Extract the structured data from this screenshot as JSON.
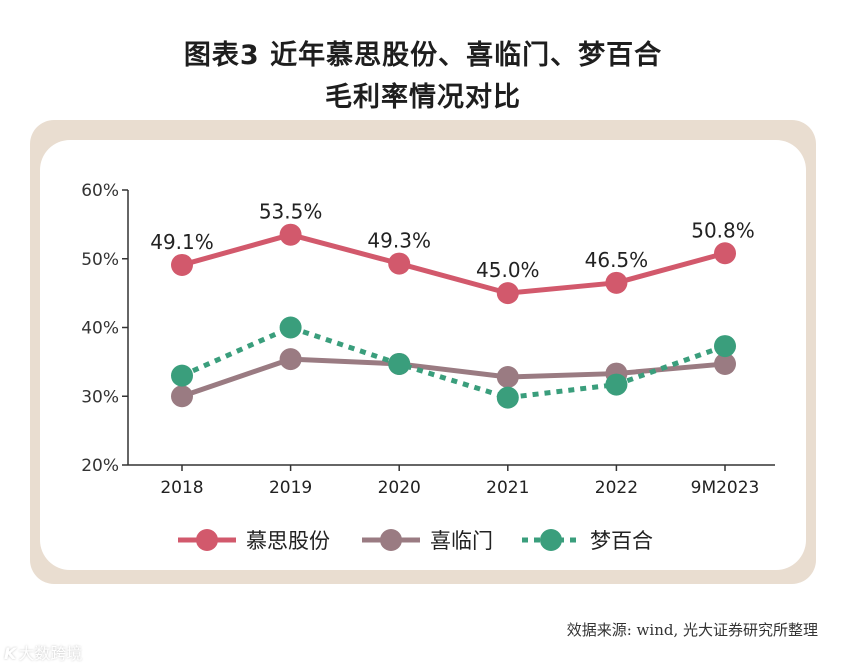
{
  "title_line1": "图表3  近年慕思股份、喜临门、梦百合",
  "title_line2": "毛利率情况对比",
  "source": "效据来源: wind, 光大证券研究所整理",
  "watermark": {
    "logo": "K",
    "text": "大数跨境"
  },
  "colors": {
    "慕思股份": "#d2596c",
    "喜临门": "#9a7b82",
    "梦百合": "#3a9e7c",
    "frame": "#e9ddd0",
    "axis": "#333333"
  },
  "chart_data": {
    "type": "line",
    "title": "图表3  近年慕思股份、喜临门、梦百合 毛利率情况对比",
    "categories": [
      "2018",
      "2019",
      "2020",
      "2021",
      "2022",
      "9M2023"
    ],
    "yticks": [
      "20%",
      "30%",
      "40%",
      "50%",
      "60%"
    ],
    "ylim": [
      20,
      60
    ],
    "grid": false,
    "legend": "bottom",
    "series": [
      {
        "name": "慕思股份",
        "style": "solid",
        "values": [
          49.1,
          53.5,
          49.3,
          45.0,
          46.5,
          50.8
        ],
        "labels": [
          "49.1%",
          "53.5%",
          "49.3%",
          "45.0%",
          "46.5%",
          "50.8%"
        ]
      },
      {
        "name": "喜临门",
        "style": "solid",
        "values": [
          30.0,
          35.4,
          34.7,
          32.8,
          33.3,
          34.7
        ]
      },
      {
        "name": "梦百合",
        "style": "dotted",
        "values": [
          33.0,
          40.0,
          34.7,
          29.8,
          31.7,
          37.3
        ]
      }
    ]
  }
}
